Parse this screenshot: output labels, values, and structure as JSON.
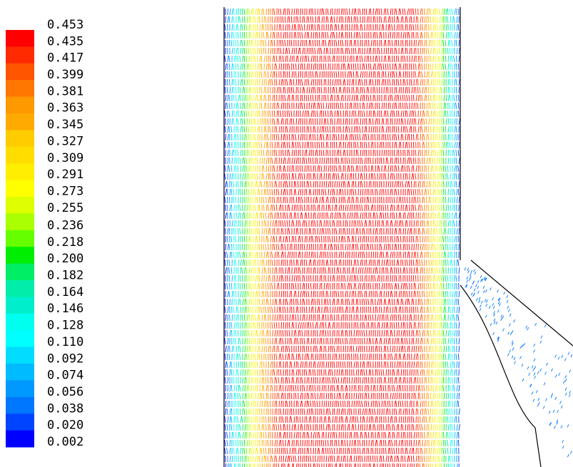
{
  "chart_data": {
    "type": "colorbar",
    "ylim": [
      0.002,
      0.453
    ],
    "yticks": [
      0.453,
      0.435,
      0.417,
      0.399,
      0.381,
      0.363,
      0.345,
      0.327,
      0.309,
      0.291,
      0.273,
      0.255,
      0.236,
      0.218,
      {
        "value": 0.2,
        "label": "0.200"
      },
      0.182,
      0.164,
      0.146,
      0.128,
      {
        "value": 0.11,
        "label": "0.110"
      },
      0.092,
      0.074,
      0.056,
      0.038,
      {
        "value": 0.02,
        "label": "0.020"
      },
      0.002
    ],
    "colors": [
      "#ff0000",
      "#ff2a00",
      "#ff5500",
      "#ff7700",
      "#ff9900",
      "#ffaa00",
      "#ffcc00",
      "#ffdd00",
      "#ffee00",
      "#ffff00",
      "#ddff00",
      "#aaff00",
      "#66ff00",
      "#00ee00",
      "#00ee66",
      "#00eeaa",
      "#00eecc",
      "#00ffee",
      "#00ffff",
      "#00ddff",
      "#00bbff",
      "#0099ff",
      "#0077ff",
      "#0044ff",
      "#0000ff"
    ]
  }
}
